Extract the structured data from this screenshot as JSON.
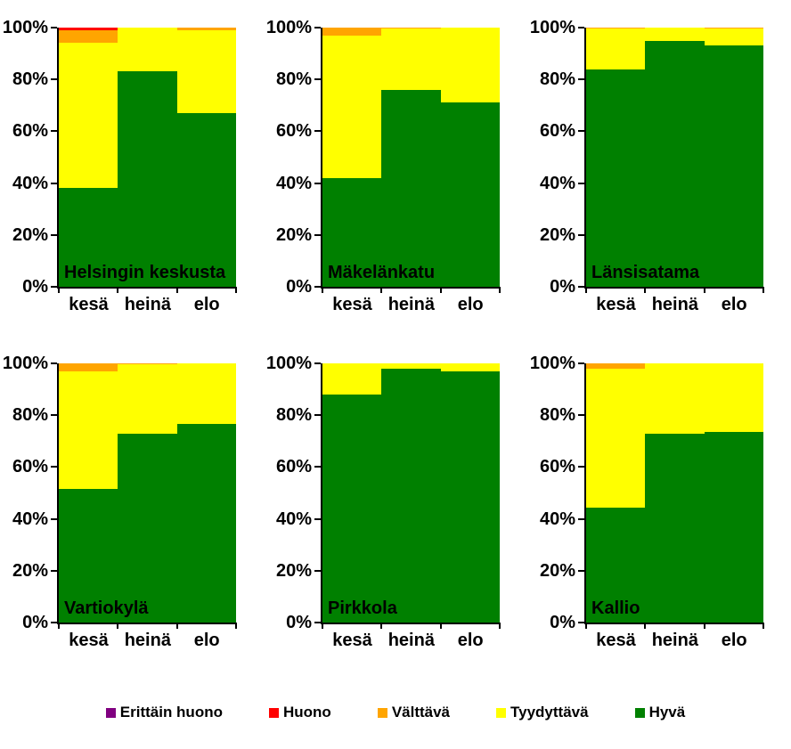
{
  "y_axis": {
    "tick_labels": [
      "100%",
      "80%",
      "60%",
      "40%",
      "20%",
      "0%"
    ]
  },
  "x_axis": {
    "categories": [
      "kesä",
      "heinä",
      "elo"
    ]
  },
  "colors": {
    "erittain_huono": "#800080",
    "huono": "#FF0000",
    "valttava": "#FFA500",
    "tyydyttava": "#FFFF00",
    "hyva": "#008000",
    "axis": "#000000",
    "background": "#FFFFFF"
  },
  "legend": {
    "items": [
      {
        "label": "Erittäin huono",
        "color": "#800080"
      },
      {
        "label": "Huono",
        "color": "#FF0000"
      },
      {
        "label": "Välttävä",
        "color": "#FFA500"
      },
      {
        "label": "Tyydyttävä",
        "color": "#FFFF00"
      },
      {
        "label": "Hyvä",
        "color": "#008000"
      }
    ]
  },
  "chart_data": [
    {
      "type": "bar",
      "stacked": true,
      "percent": true,
      "title": "Helsingin keskusta",
      "categories": [
        "kesä",
        "heinä",
        "elo"
      ],
      "ylim": [
        0,
        100
      ],
      "ytick_labels": [
        "0%",
        "20%",
        "40%",
        "60%",
        "80%",
        "100%"
      ],
      "series": [
        {
          "name": "Hyvä",
          "color": "#008000",
          "values": [
            38,
            83,
            67
          ]
        },
        {
          "name": "Tyydyttävä",
          "color": "#FFFF00",
          "values": [
            56,
            17,
            32
          ]
        },
        {
          "name": "Välttävä",
          "color": "#FFA500",
          "values": [
            5,
            0,
            1
          ]
        },
        {
          "name": "Huono",
          "color": "#FF0000",
          "values": [
            1,
            0,
            0
          ]
        },
        {
          "name": "Erittäin huono",
          "color": "#800080",
          "values": [
            0,
            0,
            0
          ]
        }
      ]
    },
    {
      "type": "bar",
      "stacked": true,
      "percent": true,
      "title": "Mäkelänkatu",
      "categories": [
        "kesä",
        "heinä",
        "elo"
      ],
      "ylim": [
        0,
        100
      ],
      "ytick_labels": [
        "0%",
        "20%",
        "40%",
        "60%",
        "80%",
        "100%"
      ],
      "series": [
        {
          "name": "Hyvä",
          "color": "#008000",
          "values": [
            42,
            76,
            71
          ]
        },
        {
          "name": "Tyydyttävä",
          "color": "#FFFF00",
          "values": [
            55,
            23.5,
            29
          ]
        },
        {
          "name": "Välttävä",
          "color": "#FFA500",
          "values": [
            3,
            0.5,
            0
          ]
        },
        {
          "name": "Huono",
          "color": "#FF0000",
          "values": [
            0,
            0,
            0
          ]
        },
        {
          "name": "Erittäin huono",
          "color": "#800080",
          "values": [
            0,
            0,
            0
          ]
        }
      ]
    },
    {
      "type": "bar",
      "stacked": true,
      "percent": true,
      "title": "Länsisatama",
      "categories": [
        "kesä",
        "heinä",
        "elo"
      ],
      "ylim": [
        0,
        100
      ],
      "ytick_labels": [
        "0%",
        "20%",
        "40%",
        "60%",
        "80%",
        "100%"
      ],
      "series": [
        {
          "name": "Hyvä",
          "color": "#008000",
          "values": [
            84,
            95,
            93
          ]
        },
        {
          "name": "Tyydyttävä",
          "color": "#FFFF00",
          "values": [
            15.5,
            5,
            6.5
          ]
        },
        {
          "name": "Välttävä",
          "color": "#FFA500",
          "values": [
            0.5,
            0,
            0.5
          ]
        },
        {
          "name": "Huono",
          "color": "#FF0000",
          "values": [
            0,
            0,
            0
          ]
        },
        {
          "name": "Erittäin huono",
          "color": "#800080",
          "values": [
            0,
            0,
            0
          ]
        }
      ]
    },
    {
      "type": "bar",
      "stacked": true,
      "percent": true,
      "title": "Vartiokylä",
      "categories": [
        "kesä",
        "heinä",
        "elo"
      ],
      "ylim": [
        0,
        100
      ],
      "ytick_labels": [
        "0%",
        "20%",
        "40%",
        "60%",
        "80%",
        "100%"
      ],
      "series": [
        {
          "name": "Hyvä",
          "color": "#008000",
          "values": [
            51.5,
            73,
            76.5
          ]
        },
        {
          "name": "Tyydyttävä",
          "color": "#FFFF00",
          "values": [
            45.5,
            26.5,
            23.5
          ]
        },
        {
          "name": "Välttävä",
          "color": "#FFA500",
          "values": [
            3,
            0.5,
            0
          ]
        },
        {
          "name": "Huono",
          "color": "#FF0000",
          "values": [
            0,
            0,
            0
          ]
        },
        {
          "name": "Erittäin huono",
          "color": "#800080",
          "values": [
            0,
            0,
            0
          ]
        }
      ]
    },
    {
      "type": "bar",
      "stacked": true,
      "percent": true,
      "title": "Pirkkola",
      "categories": [
        "kesä",
        "heinä",
        "elo"
      ],
      "ylim": [
        0,
        100
      ],
      "ytick_labels": [
        "0%",
        "20%",
        "40%",
        "60%",
        "80%",
        "100%"
      ],
      "series": [
        {
          "name": "Hyvä",
          "color": "#008000",
          "values": [
            88,
            98,
            97
          ]
        },
        {
          "name": "Tyydyttävä",
          "color": "#FFFF00",
          "values": [
            12,
            2,
            3
          ]
        },
        {
          "name": "Välttävä",
          "color": "#FFA500",
          "values": [
            0,
            0,
            0
          ]
        },
        {
          "name": "Huono",
          "color": "#FF0000",
          "values": [
            0,
            0,
            0
          ]
        },
        {
          "name": "Erittäin huono",
          "color": "#800080",
          "values": [
            0,
            0,
            0
          ]
        }
      ]
    },
    {
      "type": "bar",
      "stacked": true,
      "percent": true,
      "title": "Kallio",
      "categories": [
        "kesä",
        "heinä",
        "elo"
      ],
      "ylim": [
        0,
        100
      ],
      "ytick_labels": [
        "0%",
        "20%",
        "40%",
        "60%",
        "80%",
        "100%"
      ],
      "series": [
        {
          "name": "Hyvä",
          "color": "#008000",
          "values": [
            44.5,
            73,
            73.5
          ]
        },
        {
          "name": "Tyydyttävä",
          "color": "#FFFF00",
          "values": [
            53.5,
            27,
            26.5
          ]
        },
        {
          "name": "Välttävä",
          "color": "#FFA500",
          "values": [
            2,
            0,
            0
          ]
        },
        {
          "name": "Huono",
          "color": "#FF0000",
          "values": [
            0,
            0,
            0
          ]
        },
        {
          "name": "Erittäin huono",
          "color": "#800080",
          "values": [
            0,
            0,
            0
          ]
        }
      ]
    }
  ]
}
